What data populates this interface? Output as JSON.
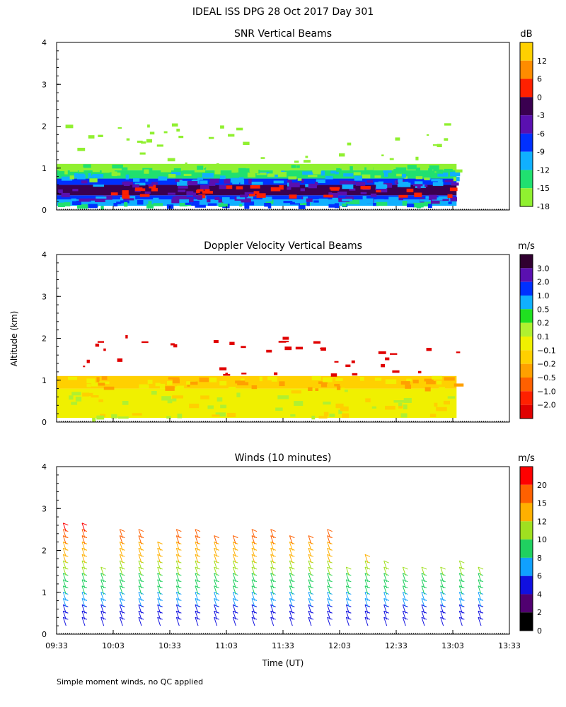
{
  "figure": {
    "title": "IDEAL ISS DPG  28 Oct 2017 Day 301",
    "ylabel": "Altitude (km)",
    "xlabel": "Time (UT)",
    "footnote": "Simple moment winds, no QC applied",
    "x_ticks": [
      "09:33",
      "10:03",
      "10:33",
      "11:03",
      "11:33",
      "12:03",
      "12:33",
      "13:03",
      "13:33"
    ],
    "y_ticks": [
      "0",
      "1",
      "2",
      "3",
      "4"
    ]
  },
  "chart_data": [
    {
      "type": "heatmap",
      "title": "SNR Vertical Beams",
      "xlabel": "Time (UT)",
      "ylabel": "Altitude (km)",
      "xlim": [
        "09:33",
        "13:33"
      ],
      "ylim": [
        0,
        4
      ],
      "colorbar": {
        "unit": "dB",
        "ticks": [
          "12",
          "6",
          "0",
          "-3",
          "-6",
          "-9",
          "-12",
          "-15",
          "-18"
        ],
        "colors": [
          "#ffd000",
          "#ff8c00",
          "#ff2000",
          "#3a0050",
          "#5a10b0",
          "#0030ff",
          "#10b0ff",
          "#20e070",
          "#90f030"
        ]
      },
      "data_extent": {
        "start": "09:33",
        "end": "13:05",
        "max_altitude_km": 1.1
      },
      "bands": [
        {
          "from_km": 0.1,
          "to_km": 0.25,
          "level": "-12"
        },
        {
          "from_km": 0.25,
          "to_km": 0.35,
          "level": "-9"
        },
        {
          "from_km": 0.35,
          "to_km": 0.6,
          "level": "-3"
        },
        {
          "from_km": 0.6,
          "to_km": 0.75,
          "level": "-9"
        },
        {
          "from_km": 0.75,
          "to_km": 0.95,
          "level": "-15"
        },
        {
          "from_km": 0.95,
          "to_km": 1.1,
          "level": "-18"
        }
      ]
    },
    {
      "type": "heatmap",
      "title": "Doppler Velocity Vertical Beams",
      "xlabel": "Time (UT)",
      "ylabel": "Altitude (km)",
      "xlim": [
        "09:33",
        "13:33"
      ],
      "ylim": [
        0,
        4
      ],
      "colorbar": {
        "unit": "m/s",
        "ticks": [
          "3.0",
          "2.0",
          "1.0",
          "0.5",
          "0.2",
          "0.1",
          "−0.1",
          "−0.2",
          "−0.5",
          "−1.0",
          "−2.0"
        ],
        "colors": [
          "#300030",
          "#5a10b0",
          "#0030ff",
          "#10b0ff",
          "#20e020",
          "#b0f030",
          "#f0f000",
          "#ffd000",
          "#ffa000",
          "#ff6000",
          "#ff2000",
          "#e00000"
        ]
      },
      "data_extent": {
        "start": "09:33",
        "end": "13:05",
        "max_altitude_km": 1.1
      },
      "bands": [
        {
          "from_km": 0.1,
          "to_km": 0.8,
          "level": "−0.1"
        },
        {
          "from_km": 0.8,
          "to_km": 1.1,
          "level": "−0.2"
        }
      ]
    },
    {
      "type": "wind_barbs",
      "title": "Winds (10 minutes)",
      "xlabel": "Time (UT)",
      "ylabel": "Altitude (km)",
      "xlim": [
        "09:33",
        "13:33"
      ],
      "ylim": [
        0,
        4
      ],
      "colorbar": {
        "unit": "m/s",
        "ticks": [
          "20",
          "15",
          "12",
          "10",
          "8",
          "6",
          "4",
          "2",
          "0"
        ],
        "colors": [
          "#ff0000",
          "#ff6000",
          "#ffb000",
          "#a0e020",
          "#20d060",
          "#10a0ff",
          "#1010e0",
          "#500070",
          "#000000"
        ]
      },
      "profile_times": [
        "09:38",
        "09:48",
        "09:58",
        "10:08",
        "10:18",
        "10:28",
        "10:38",
        "10:48",
        "10:58",
        "11:08",
        "11:18",
        "11:28",
        "11:38",
        "11:48",
        "11:58",
        "12:08",
        "12:18",
        "12:28",
        "12:38",
        "12:48",
        "12:58",
        "13:08",
        "13:18"
      ],
      "profile_top_km": [
        2.5,
        2.5,
        1.4,
        2.4,
        2.4,
        2.0,
        2.4,
        2.4,
        2.2,
        2.2,
        2.3,
        2.3,
        2.2,
        2.2,
        2.3,
        1.5,
        1.7,
        1.6,
        1.5,
        1.5,
        1.5,
        1.6,
        1.4
      ]
    }
  ]
}
